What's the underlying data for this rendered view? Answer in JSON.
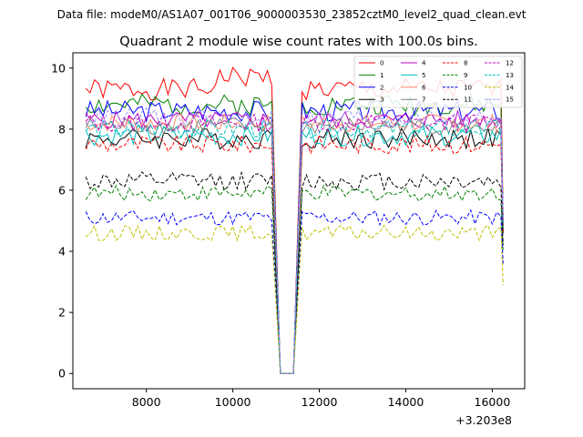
{
  "figure": {
    "suptitle": "Data file: modeM0/AS1A07_001T06_9000003530_23852cztM0_level2_quad_clean.evt",
    "title": "Quadrant 2 module wise count rates with 100.0s bins."
  },
  "chart_data": {
    "type": "line",
    "title": "Quadrant 2 module wise count rates with 100.0s bins.",
    "xlabel": "",
    "ylabel": "",
    "x_offset_label": "+3.203e8",
    "xlim": [
      6300,
      16750
    ],
    "ylim": [
      -0.5,
      10.5
    ],
    "xticks": [
      8000,
      10000,
      12000,
      14000,
      16000
    ],
    "xtick_labels": [
      "8000",
      "10000",
      "12000",
      "14000",
      "16000"
    ],
    "yticks": [
      0,
      2,
      4,
      6,
      8,
      10
    ],
    "ytick_labels": [
      "0",
      "2",
      "4",
      "6",
      "8",
      "10"
    ],
    "grid": false,
    "legend_position": "top-right",
    "legend_columns": 4,
    "x_start": 6600,
    "x_step": 100,
    "gap_zero_range": [
      11100,
      11450
    ],
    "series": [
      {
        "name": "0",
        "color": "#ff0000",
        "dash": "solid",
        "base": 9.3,
        "amp": 0.35,
        "end": 5.0,
        "trend": "rise"
      },
      {
        "name": "1",
        "color": "#008000",
        "dash": "solid",
        "base": 8.8,
        "amp": 0.35,
        "end": 5.0,
        "trend": "flat"
      },
      {
        "name": "2",
        "color": "#0000ff",
        "dash": "solid",
        "base": 8.6,
        "amp": 0.35,
        "end": 4.8,
        "trend": "flat"
      },
      {
        "name": "3",
        "color": "#000000",
        "dash": "solid",
        "base": 7.7,
        "amp": 0.35,
        "end": 4.6,
        "trend": "flat"
      },
      {
        "name": "4",
        "color": "#bf00bf",
        "dash": "solid",
        "base": 8.3,
        "amp": 0.3,
        "end": 4.8,
        "trend": "flat"
      },
      {
        "name": "5",
        "color": "#00bfbf",
        "dash": "solid",
        "base": 7.8,
        "amp": 0.35,
        "end": 4.7,
        "trend": "flat"
      },
      {
        "name": "6",
        "color": "#ff8c69",
        "dash": "solid",
        "base": 8.2,
        "amp": 0.3,
        "end": 4.9,
        "trend": "flat"
      },
      {
        "name": "7",
        "color": "#808080",
        "dash": "solid",
        "base": 8.1,
        "amp": 0.3,
        "end": 4.8,
        "trend": "flat"
      },
      {
        "name": "8",
        "color": "#ff0000",
        "dash": "dashed",
        "base": 7.5,
        "amp": 0.3,
        "end": 4.6,
        "trend": "flat"
      },
      {
        "name": "9",
        "color": "#008000",
        "dash": "dashed",
        "base": 5.9,
        "amp": 0.25,
        "end": 4.0,
        "trend": "flat"
      },
      {
        "name": "10",
        "color": "#0000ff",
        "dash": "dashed",
        "base": 5.1,
        "amp": 0.25,
        "end": 3.6,
        "trend": "flat"
      },
      {
        "name": "11",
        "color": "#000000",
        "dash": "dashed",
        "base": 6.3,
        "amp": 0.3,
        "end": 4.2,
        "trend": "flat"
      },
      {
        "name": "12",
        "color": "#bf00bf",
        "dash": "dashed",
        "base": 8.2,
        "amp": 0.3,
        "end": 4.9,
        "trend": "flat"
      },
      {
        "name": "13",
        "color": "#00bfbf",
        "dash": "dashed",
        "base": 8.0,
        "amp": 0.3,
        "end": 4.8,
        "trend": "flat"
      },
      {
        "name": "14",
        "color": "#bfbf00",
        "dash": "dashed",
        "base": 4.6,
        "amp": 0.25,
        "end": 2.9,
        "trend": "flat"
      },
      {
        "name": "15",
        "color": "#9999ff",
        "dash": "dashed",
        "base": 8.4,
        "amp": 0.3,
        "end": 5.0,
        "trend": "flat"
      }
    ]
  }
}
